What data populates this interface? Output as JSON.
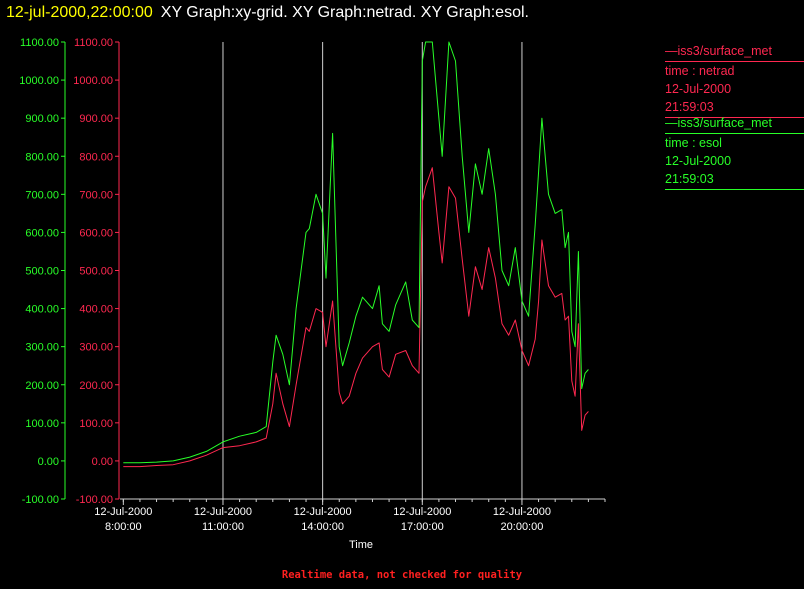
{
  "title": {
    "time": "12-jul-2000,22:00:00",
    "graphs": "XY Graph:xy-grid.  XY Graph:netrad.  XY Graph:esol."
  },
  "colors": {
    "netrad": "#ff2850",
    "esol": "#28ff28",
    "grid": "#d0d0d0",
    "background": "#000000"
  },
  "legend": [
    {
      "name": "iss3/surface_met",
      "var": "time : netrad",
      "date": "12-Jul-2000",
      "time": "21:59:03",
      "color": "#ff2850"
    },
    {
      "name": "iss3/surface_met",
      "var": "time : esol",
      "date": "12-Jul-2000",
      "time": "21:59:03",
      "color": "#28ff28"
    }
  ],
  "footer": "Realtime data, not checked for quality",
  "chart_data": {
    "type": "line",
    "xlabel": "Time",
    "x_unit": "hours since 12-Jul-2000 00:00",
    "xlim": [
      7.9,
      22.5
    ],
    "ylim": [
      -100,
      1100
    ],
    "yticks": [
      "-100.00",
      "0.00",
      "100.00",
      "200.00",
      "300.00",
      "400.00",
      "500.00",
      "600.00",
      "700.00",
      "800.00",
      "900.00",
      "1000.00",
      "1100.00"
    ],
    "xticks": [
      {
        "x": 8,
        "date": "12-Jul-2000",
        "time": "8:00:00"
      },
      {
        "x": 11,
        "date": "12-Jul-2000",
        "time": "11:00:00"
      },
      {
        "x": 14,
        "date": "12-Jul-2000",
        "time": "14:00:00"
      },
      {
        "x": 17,
        "date": "12-Jul-2000",
        "time": "17:00:00"
      },
      {
        "x": 20,
        "date": "12-Jul-2000",
        "time": "20:00:00"
      }
    ],
    "grid_x": [
      11,
      14,
      17,
      20
    ],
    "series": [
      {
        "name": "time : netrad",
        "x": [
          8.0,
          8.5,
          9.0,
          9.5,
          10.0,
          10.5,
          11.0,
          11.5,
          12.0,
          12.3,
          12.5,
          12.6,
          12.8,
          13.0,
          13.2,
          13.5,
          13.6,
          13.8,
          14.0,
          14.1,
          14.3,
          14.5,
          14.6,
          14.8,
          15.0,
          15.2,
          15.5,
          15.7,
          15.8,
          16.0,
          16.2,
          16.5,
          16.7,
          16.9,
          17.0,
          17.1,
          17.3,
          17.5,
          17.6,
          17.8,
          18.0,
          18.2,
          18.4,
          18.6,
          18.8,
          19.0,
          19.2,
          19.4,
          19.6,
          19.8,
          20.0,
          20.2,
          20.4,
          20.5,
          20.6,
          20.8,
          21.0,
          21.2,
          21.3,
          21.4,
          21.5,
          21.6,
          21.7,
          21.8,
          21.9,
          22.0
        ],
        "values": [
          -15,
          -15,
          -12,
          -10,
          0,
          15,
          35,
          40,
          50,
          60,
          150,
          230,
          150,
          90,
          200,
          350,
          340,
          400,
          390,
          300,
          420,
          180,
          150,
          170,
          230,
          270,
          300,
          310,
          240,
          220,
          280,
          290,
          250,
          230,
          680,
          720,
          770,
          600,
          520,
          720,
          690,
          530,
          380,
          510,
          450,
          560,
          480,
          360,
          330,
          370,
          290,
          250,
          320,
          420,
          580,
          460,
          430,
          440,
          370,
          380,
          210,
          170,
          360,
          80,
          120,
          130
        ]
      },
      {
        "name": "time : esol",
        "x": [
          8.0,
          8.5,
          9.0,
          9.5,
          10.0,
          10.5,
          11.0,
          11.5,
          12.0,
          12.3,
          12.5,
          12.6,
          12.8,
          13.0,
          13.2,
          13.5,
          13.6,
          13.8,
          14.0,
          14.1,
          14.3,
          14.5,
          14.6,
          14.8,
          15.0,
          15.2,
          15.5,
          15.7,
          15.8,
          16.0,
          16.2,
          16.5,
          16.7,
          16.9,
          17.0,
          17.1,
          17.3,
          17.5,
          17.6,
          17.8,
          18.0,
          18.2,
          18.4,
          18.6,
          18.8,
          19.0,
          19.2,
          19.4,
          19.6,
          19.8,
          20.0,
          20.2,
          20.4,
          20.5,
          20.6,
          20.8,
          21.0,
          21.2,
          21.3,
          21.4,
          21.5,
          21.6,
          21.7,
          21.8,
          21.9,
          22.0
        ],
        "values": [
          -5,
          -5,
          -3,
          0,
          10,
          25,
          50,
          65,
          75,
          90,
          260,
          330,
          280,
          200,
          400,
          600,
          610,
          700,
          650,
          480,
          860,
          300,
          250,
          310,
          380,
          430,
          400,
          460,
          360,
          340,
          410,
          470,
          370,
          350,
          1050,
          1100,
          1100,
          900,
          800,
          1100,
          1050,
          800,
          600,
          780,
          700,
          820,
          700,
          500,
          460,
          560,
          420,
          380,
          620,
          760,
          900,
          700,
          650,
          660,
          560,
          600,
          340,
          300,
          550,
          190,
          230,
          240
        ]
      }
    ]
  }
}
